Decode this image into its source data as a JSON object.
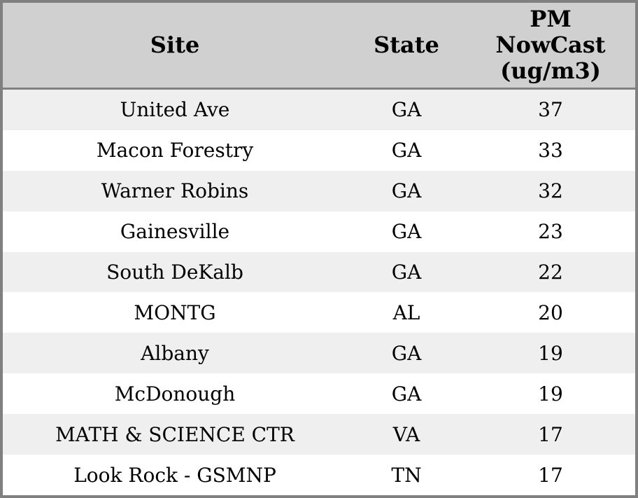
{
  "colors": {
    "border": "#808080",
    "header_bg": "#d0d0d0",
    "row_alt_bg": "#efefef",
    "row_bg": "#ffffff",
    "text": "#000000"
  },
  "table": {
    "columns": [
      {
        "key": "site",
        "label": "Site"
      },
      {
        "key": "state",
        "label": "State"
      },
      {
        "key": "pm",
        "label": "PM\nNowCast\n(ug/m3)"
      }
    ],
    "rows": [
      {
        "site": "United Ave",
        "state": "GA",
        "pm": 37
      },
      {
        "site": "Macon Forestry",
        "state": "GA",
        "pm": 33
      },
      {
        "site": "Warner Robins",
        "state": "GA",
        "pm": 32
      },
      {
        "site": "Gainesville",
        "state": "GA",
        "pm": 23
      },
      {
        "site": "South DeKalb",
        "state": "GA",
        "pm": 22
      },
      {
        "site": "MONTG",
        "state": "AL",
        "pm": 20
      },
      {
        "site": "Albany",
        "state": "GA",
        "pm": 19
      },
      {
        "site": "McDonough",
        "state": "GA",
        "pm": 19
      },
      {
        "site": "MATH & SCIENCE CTR",
        "state": "VA",
        "pm": 17
      },
      {
        "site": "Look Rock - GSMNP",
        "state": "TN",
        "pm": 17
      }
    ]
  },
  "chart_data": {
    "type": "table",
    "title": "",
    "columns": [
      "Site",
      "State",
      "PM NowCast (ug/m3)"
    ],
    "rows": [
      [
        "United Ave",
        "GA",
        37
      ],
      [
        "Macon Forestry",
        "GA",
        33
      ],
      [
        "Warner Robins",
        "GA",
        32
      ],
      [
        "Gainesville",
        "GA",
        23
      ],
      [
        "South DeKalb",
        "GA",
        22
      ],
      [
        "MONTG",
        "AL",
        20
      ],
      [
        "Albany",
        "GA",
        19
      ],
      [
        "McDonough",
        "GA",
        19
      ],
      [
        "MATH & SCIENCE CTR",
        "VA",
        17
      ],
      [
        "Look Rock - GSMNP",
        "TN",
        17
      ]
    ]
  }
}
